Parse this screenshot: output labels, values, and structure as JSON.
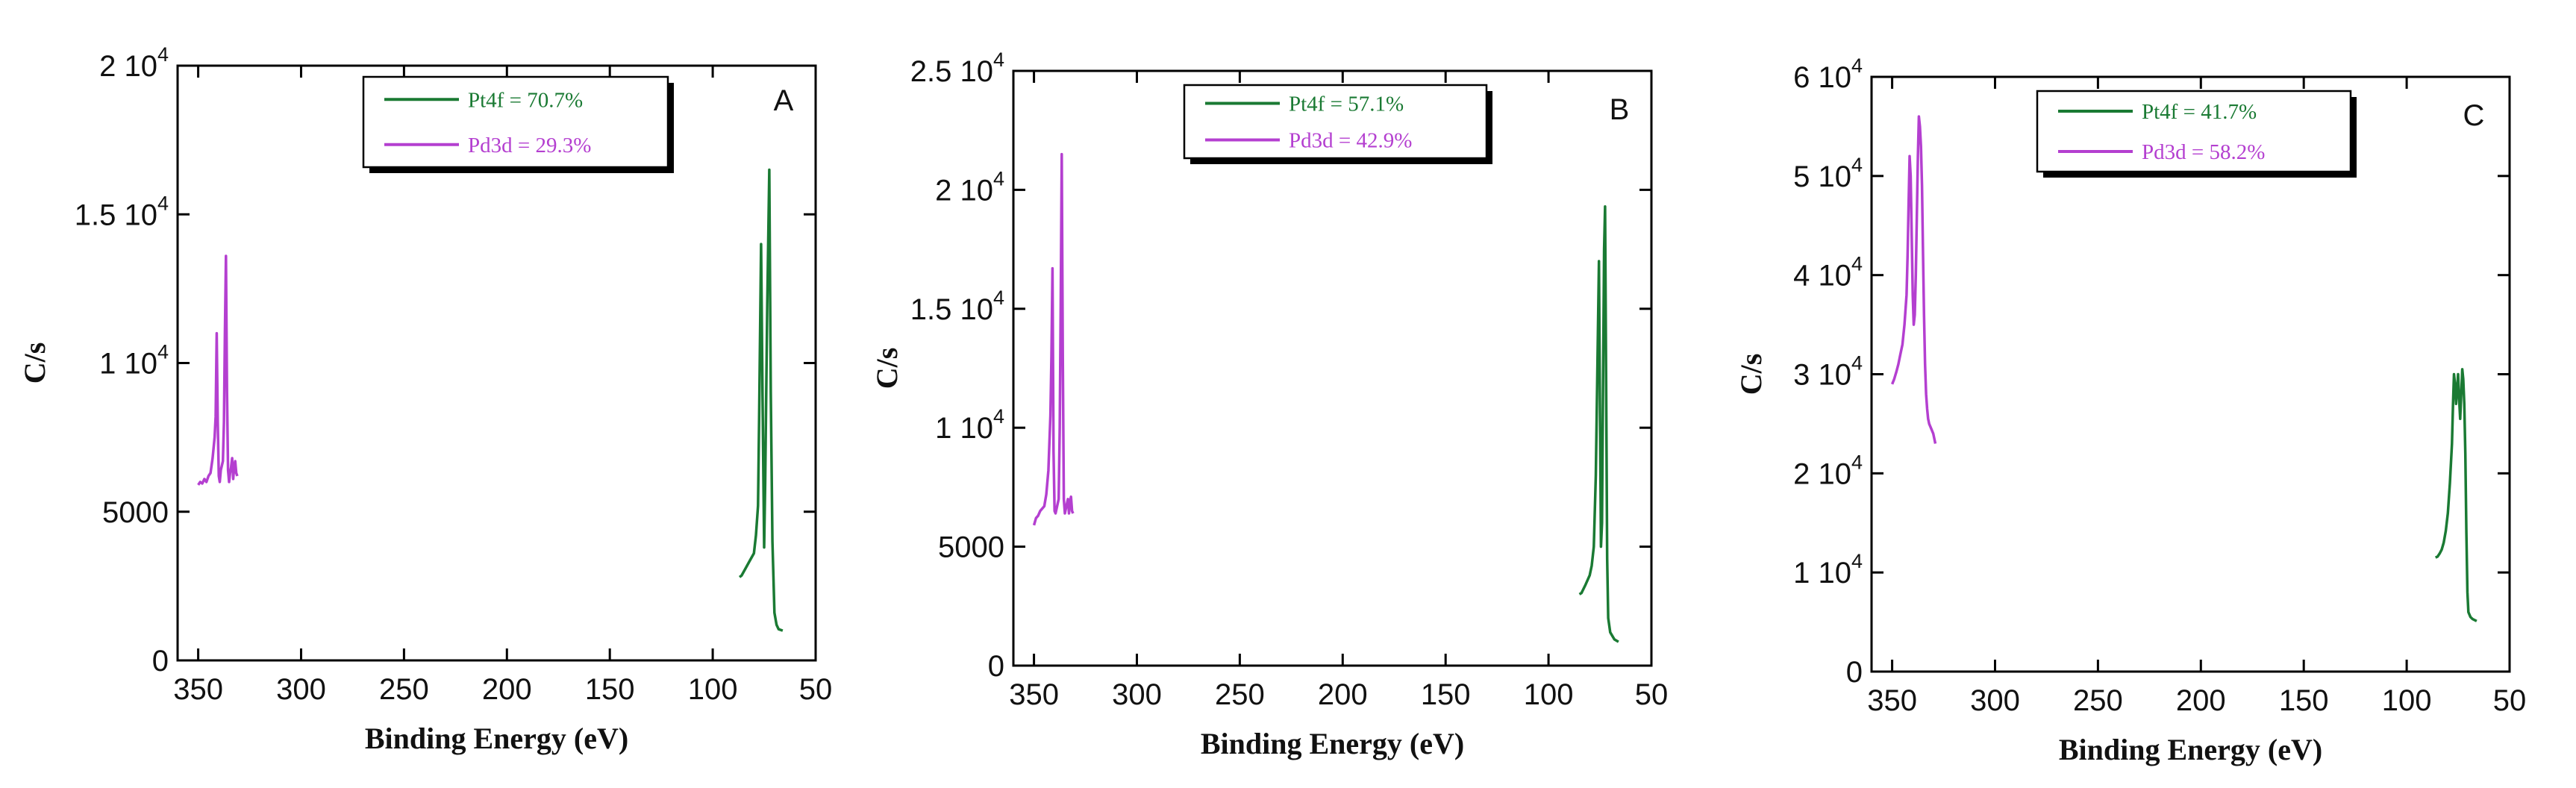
{
  "colors": {
    "pt": "#1a7a33",
    "pd": "#b43fd0",
    "axis": "#000000"
  },
  "chart_data": [
    {
      "type": "line",
      "panel_label": "A",
      "xlabel": "Binding Energy (eV)",
      "ylabel": "C/s",
      "xlim": [
        360,
        50
      ],
      "ylim": [
        0,
        20000
      ],
      "x_ticks": [
        350,
        300,
        250,
        200,
        150,
        100,
        50
      ],
      "x_tick_labels": [
        "350",
        "300",
        "250",
        "200",
        "150",
        "100",
        "50"
      ],
      "y_ticks": [
        {
          "value": 0,
          "base": "0",
          "exp": ""
        },
        {
          "value": 5000,
          "base": "5000",
          "exp": ""
        },
        {
          "value": 10000,
          "base": "1 10",
          "exp": "4"
        },
        {
          "value": 15000,
          "base": "1.5 10",
          "exp": "4"
        },
        {
          "value": 20000,
          "base": "2 10",
          "exp": "4"
        }
      ],
      "series": [
        {
          "name": "Pt4f",
          "legend": "Pt4f = 70.7%",
          "color": "#1a7a33",
          "x": [
            87,
            86,
            84,
            82,
            80,
            79,
            78,
            77.5,
            76.5,
            75.8,
            75,
            74.5,
            73.5,
            72.5,
            71.8,
            71,
            70,
            69,
            68,
            66
          ],
          "y": [
            2800,
            2850,
            3100,
            3350,
            3600,
            4200,
            5200,
            8000,
            14000,
            9000,
            3800,
            6000,
            12000,
            16500,
            9000,
            4000,
            1600,
            1200,
            1050,
            1000
          ]
        },
        {
          "name": "Pd3d",
          "legend": "Pd3d = 29.3%",
          "color": "#b43fd0",
          "x": [
            350,
            349,
            348,
            347,
            346,
            345,
            344,
            343,
            342,
            341.5,
            341,
            340.5,
            340,
            339.5,
            339,
            338,
            337.5,
            337,
            336.5,
            336,
            335.5,
            335,
            334.5,
            334,
            333.5,
            333,
            332.5,
            332,
            331.5,
            331
          ],
          "y": [
            5900,
            6000,
            5950,
            6100,
            6000,
            6200,
            6300,
            6800,
            7500,
            8200,
            11000,
            8000,
            6200,
            6000,
            6400,
            6700,
            8000,
            11000,
            13600,
            9000,
            6400,
            6000,
            6300,
            6500,
            6800,
            6100,
            6500,
            6700,
            6300,
            6200
          ]
        }
      ]
    },
    {
      "type": "line",
      "panel_label": "B",
      "xlabel": "Binding Energy (eV)",
      "ylabel": "C/s",
      "xlim": [
        360,
        50
      ],
      "ylim": [
        0,
        25000
      ],
      "x_ticks": [
        350,
        300,
        250,
        200,
        150,
        100,
        50
      ],
      "x_tick_labels": [
        "350",
        "300",
        "250",
        "200",
        "150",
        "100",
        "50"
      ],
      "y_ticks": [
        {
          "value": 0,
          "base": "0",
          "exp": ""
        },
        {
          "value": 5000,
          "base": "5000",
          "exp": ""
        },
        {
          "value": 10000,
          "base": "1 10",
          "exp": "4"
        },
        {
          "value": 15000,
          "base": "1.5 10",
          "exp": "4"
        },
        {
          "value": 20000,
          "base": "2 10",
          "exp": "4"
        },
        {
          "value": 25000,
          "base": "2.5 10",
          "exp": "4"
        }
      ],
      "series": [
        {
          "name": "Pt4f",
          "legend": "Pt4f = 57.1%",
          "color": "#1a7a33",
          "x": [
            85,
            84,
            82,
            80,
            79,
            78,
            77,
            76,
            75.5,
            75,
            74.5,
            74,
            73.5,
            73,
            72.5,
            72,
            71.5,
            71,
            70,
            68,
            66
          ],
          "y": [
            3000,
            3050,
            3400,
            3800,
            4200,
            5000,
            8000,
            14000,
            17000,
            11000,
            5000,
            6000,
            12000,
            17500,
            19300,
            12000,
            4500,
            2000,
            1400,
            1100,
            1000
          ]
        },
        {
          "name": "Pd3d",
          "legend": "Pd3d = 42.9%",
          "color": "#b43fd0",
          "x": [
            350,
            349,
            348,
            347,
            346,
            345,
            344,
            343,
            342,
            341.5,
            341,
            340.5,
            340,
            339.5,
            339,
            338,
            337.5,
            337,
            336.5,
            336,
            335.5,
            335,
            334.5,
            334,
            333.5,
            333,
            332.5,
            332,
            331.5,
            331
          ],
          "y": [
            5900,
            6200,
            6300,
            6500,
            6600,
            6700,
            7200,
            8200,
            10500,
            13000,
            16700,
            9000,
            6500,
            6400,
            6600,
            7000,
            10000,
            15000,
            21500,
            13000,
            7000,
            6400,
            6600,
            6800,
            7000,
            6400,
            6900,
            7100,
            6500,
            6400
          ]
        }
      ]
    },
    {
      "type": "line",
      "panel_label": "C",
      "xlabel": "Binding Energy (eV)",
      "ylabel": "C/s",
      "xlim": [
        360,
        50
      ],
      "ylim": [
        0,
        60000
      ],
      "x_ticks": [
        350,
        300,
        250,
        200,
        150,
        100,
        50
      ],
      "x_tick_labels": [
        "350",
        "300",
        "250",
        "200",
        "150",
        "100",
        "50"
      ],
      "y_ticks": [
        {
          "value": 0,
          "base": "0",
          "exp": ""
        },
        {
          "value": 10000,
          "base": "1 10",
          "exp": "4"
        },
        {
          "value": 20000,
          "base": "2 10",
          "exp": "4"
        },
        {
          "value": 30000,
          "base": "3 10",
          "exp": "4"
        },
        {
          "value": 40000,
          "base": "4 10",
          "exp": "4"
        },
        {
          "value": 50000,
          "base": "5 10",
          "exp": "4"
        },
        {
          "value": 60000,
          "base": "6 10",
          "exp": "4"
        }
      ],
      "series": [
        {
          "name": "Pt4f",
          "legend": "Pt4f = 41.7%",
          "color": "#1a7a33",
          "x": [
            86,
            85,
            84,
            83,
            82,
            81,
            80,
            79,
            78,
            77.5,
            77,
            76.5,
            76,
            75.5,
            75,
            74.5,
            74,
            73.5,
            73,
            72.5,
            72,
            71.5,
            71,
            70.5,
            70,
            69,
            68,
            67,
            66
          ],
          "y": [
            11500,
            11600,
            11900,
            12300,
            13000,
            14200,
            16000,
            19000,
            23000,
            27000,
            30000,
            29000,
            27000,
            28500,
            30000,
            27500,
            25500,
            28000,
            30500,
            29500,
            27000,
            22000,
            14000,
            8000,
            6000,
            5500,
            5300,
            5200,
            5100
          ]
        },
        {
          "name": "Pd3d",
          "legend": "Pd3d = 58.2%",
          "color": "#b43fd0",
          "x": [
            350,
            349,
            348,
            347,
            346,
            345,
            344,
            343,
            342.5,
            342,
            341.5,
            341,
            340.5,
            340,
            339.5,
            339,
            338.5,
            338,
            337.5,
            337,
            336.5,
            336,
            335.5,
            335,
            334.5,
            334,
            333.5,
            333,
            332.5,
            332,
            331,
            330,
            329
          ],
          "y": [
            29000,
            29500,
            30200,
            31000,
            32000,
            33000,
            35000,
            38000,
            42000,
            47000,
            52000,
            50000,
            44000,
            38000,
            35000,
            36000,
            40000,
            46000,
            52000,
            56000,
            55000,
            53000,
            49000,
            42000,
            36000,
            31000,
            28000,
            26500,
            25500,
            25000,
            24500,
            24000,
            23000
          ]
        }
      ]
    }
  ]
}
